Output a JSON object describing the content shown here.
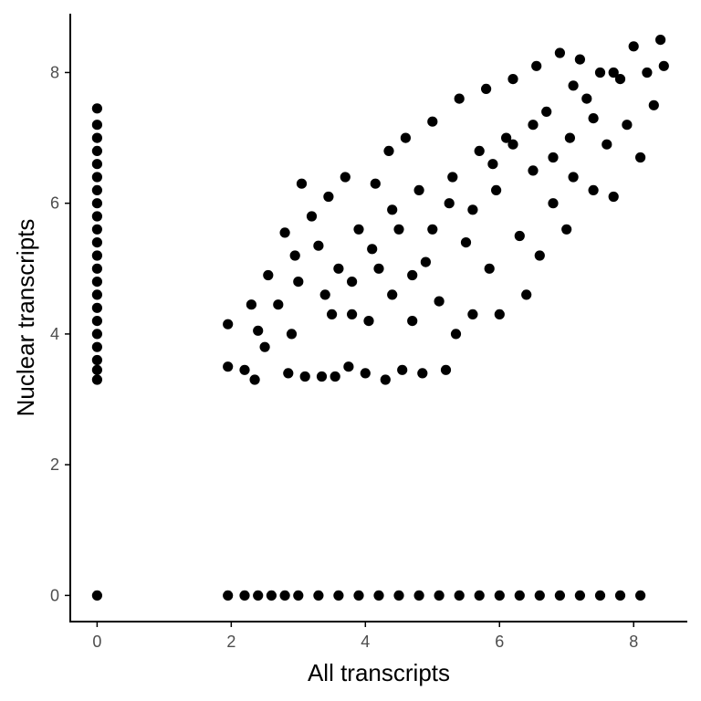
{
  "chart_data": {
    "type": "scatter",
    "title": "",
    "xlabel": "All transcripts",
    "ylabel": "Nuclear transcripts",
    "xlim": [
      -0.4,
      8.8
    ],
    "ylim": [
      -0.4,
      8.9
    ],
    "x_ticks": [
      0,
      2,
      4,
      6,
      8
    ],
    "y_ticks": [
      0,
      2,
      4,
      6,
      8
    ],
    "x_tick_labels": [
      "0",
      "2",
      "4",
      "6",
      "8"
    ],
    "y_tick_labels": [
      "0",
      "2",
      "4",
      "6",
      "8"
    ],
    "grid": false,
    "legend": "none",
    "point_color": "#000000",
    "series": [
      {
        "points": [
          [
            0,
            0
          ],
          [
            1.95,
            0
          ],
          [
            2.2,
            0
          ],
          [
            2.4,
            0
          ],
          [
            2.6,
            0
          ],
          [
            2.8,
            0
          ],
          [
            3.0,
            0
          ],
          [
            3.3,
            0
          ],
          [
            3.6,
            0
          ],
          [
            3.9,
            0
          ],
          [
            4.2,
            0
          ],
          [
            4.5,
            0
          ],
          [
            4.8,
            0
          ],
          [
            5.1,
            0
          ],
          [
            5.4,
            0
          ],
          [
            5.7,
            0
          ],
          [
            6.0,
            0
          ],
          [
            6.3,
            0
          ],
          [
            6.6,
            0
          ],
          [
            6.9,
            0
          ],
          [
            7.2,
            0
          ],
          [
            7.5,
            0
          ],
          [
            7.8,
            0
          ],
          [
            8.1,
            0
          ],
          [
            0,
            3.3
          ],
          [
            0,
            3.45
          ],
          [
            0,
            3.6
          ],
          [
            0,
            3.8
          ],
          [
            0,
            4.0
          ],
          [
            0,
            4.2
          ],
          [
            0,
            4.4
          ],
          [
            0,
            4.6
          ],
          [
            0,
            4.8
          ],
          [
            0,
            5.0
          ],
          [
            0,
            5.2
          ],
          [
            0,
            5.4
          ],
          [
            0,
            5.6
          ],
          [
            0,
            5.8
          ],
          [
            0,
            6.0
          ],
          [
            0,
            6.2
          ],
          [
            0,
            6.4
          ],
          [
            0,
            6.6
          ],
          [
            0,
            6.8
          ],
          [
            0,
            7.0
          ],
          [
            0,
            7.2
          ],
          [
            0,
            7.45
          ],
          [
            1.95,
            4.15
          ],
          [
            1.95,
            3.5
          ],
          [
            2.2,
            3.45
          ],
          [
            2.3,
            4.45
          ],
          [
            2.35,
            3.3
          ],
          [
            2.4,
            4.05
          ],
          [
            2.5,
            3.8
          ],
          [
            2.55,
            4.9
          ],
          [
            2.7,
            4.45
          ],
          [
            2.8,
            5.55
          ],
          [
            2.85,
            3.4
          ],
          [
            2.9,
            4.0
          ],
          [
            2.95,
            5.2
          ],
          [
            3.05,
            6.3
          ],
          [
            3.1,
            3.35
          ],
          [
            3.2,
            5.8
          ],
          [
            3.3,
            5.35
          ],
          [
            3.35,
            3.35
          ],
          [
            3.45,
            6.1
          ],
          [
            3.5,
            4.3
          ],
          [
            3.55,
            3.35
          ],
          [
            3.6,
            5.0
          ],
          [
            3.7,
            6.4
          ],
          [
            3.75,
            3.5
          ],
          [
            3.8,
            4.8
          ],
          [
            3.9,
            5.6
          ],
          [
            4.0,
            3.4
          ],
          [
            4.05,
            4.2
          ],
          [
            4.15,
            6.3
          ],
          [
            4.2,
            5.0
          ],
          [
            4.3,
            3.3
          ],
          [
            4.35,
            6.8
          ],
          [
            4.4,
            4.6
          ],
          [
            4.5,
            5.6
          ],
          [
            4.55,
            3.45
          ],
          [
            4.6,
            7.0
          ],
          [
            4.7,
            4.2
          ],
          [
            4.8,
            6.2
          ],
          [
            4.85,
            3.4
          ],
          [
            4.9,
            5.1
          ],
          [
            5.0,
            7.25
          ],
          [
            5.1,
            4.5
          ],
          [
            5.2,
            3.45
          ],
          [
            5.25,
            6.0
          ],
          [
            5.35,
            4.0
          ],
          [
            5.4,
            7.6
          ],
          [
            5.5,
            5.4
          ],
          [
            5.6,
            4.3
          ],
          [
            5.7,
            6.8
          ],
          [
            5.8,
            7.75
          ],
          [
            5.85,
            5.0
          ],
          [
            5.95,
            6.2
          ],
          [
            6.0,
            4.3
          ],
          [
            6.1,
            7.0
          ],
          [
            6.2,
            7.9
          ],
          [
            6.3,
            5.5
          ],
          [
            6.4,
            4.6
          ],
          [
            6.5,
            6.5
          ],
          [
            6.55,
            8.1
          ],
          [
            6.6,
            5.2
          ],
          [
            6.7,
            7.4
          ],
          [
            6.8,
            6.0
          ],
          [
            6.9,
            8.3
          ],
          [
            7.0,
            5.6
          ],
          [
            7.05,
            7.0
          ],
          [
            7.1,
            6.4
          ],
          [
            7.2,
            8.2
          ],
          [
            7.3,
            7.6
          ],
          [
            7.4,
            6.2
          ],
          [
            7.5,
            8.0
          ],
          [
            7.6,
            6.9
          ],
          [
            7.7,
            6.1
          ],
          [
            7.8,
            7.9
          ],
          [
            7.9,
            7.2
          ],
          [
            8.0,
            8.4
          ],
          [
            8.1,
            6.7
          ],
          [
            8.2,
            8.0
          ],
          [
            8.3,
            7.5
          ],
          [
            8.4,
            8.5
          ],
          [
            8.45,
            8.1
          ],
          [
            3.0,
            4.8
          ],
          [
            3.4,
            4.6
          ],
          [
            3.8,
            4.3
          ],
          [
            4.1,
            5.3
          ],
          [
            4.4,
            5.9
          ],
          [
            4.7,
            4.9
          ],
          [
            5.0,
            5.6
          ],
          [
            5.3,
            6.4
          ],
          [
            5.6,
            5.9
          ],
          [
            5.9,
            6.6
          ],
          [
            6.2,
            6.9
          ],
          [
            6.5,
            7.2
          ],
          [
            6.8,
            6.7
          ],
          [
            7.1,
            7.8
          ],
          [
            7.4,
            7.3
          ],
          [
            7.7,
            8.0
          ]
        ]
      }
    ]
  }
}
